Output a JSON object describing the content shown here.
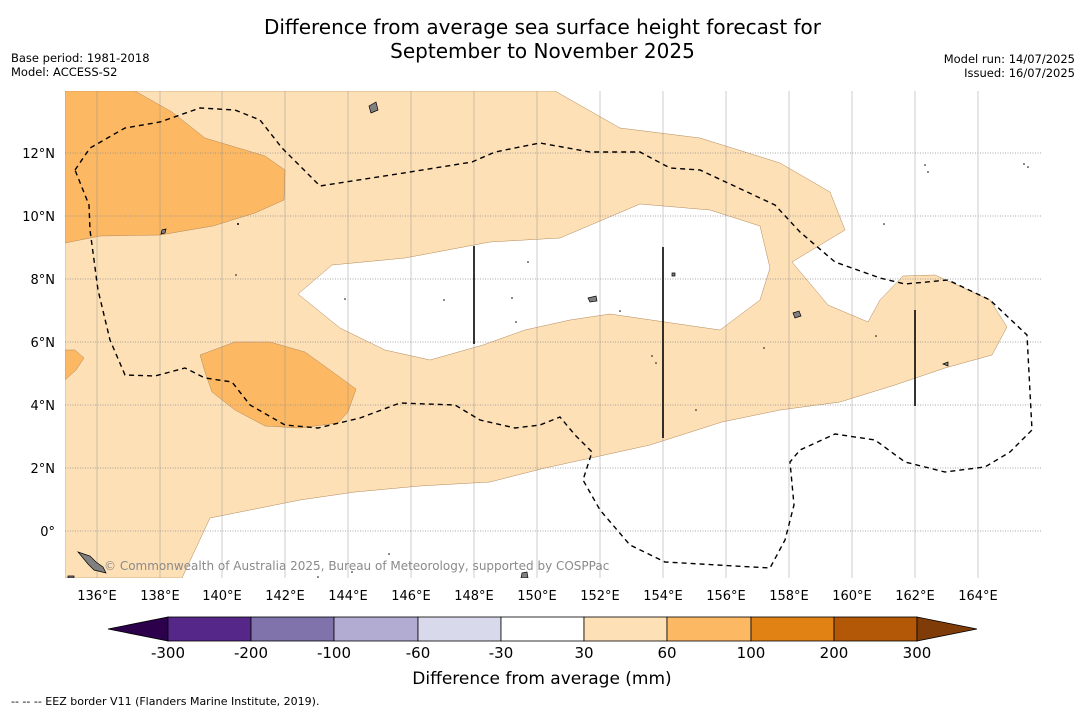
{
  "title": {
    "line1": "Difference from average sea surface height forecast for",
    "line2": "September to November 2025"
  },
  "meta_left": {
    "base_period": "Base period: 1981-2018",
    "model": "Model: ACCESS-S2"
  },
  "meta_right": {
    "model_run": "Model run: 14/07/2025",
    "issued": "Issued: 16/07/2025"
  },
  "map": {
    "lon_ticks": [
      "136°E",
      "138°E",
      "140°E",
      "142°E",
      "144°E",
      "146°E",
      "148°E",
      "150°E",
      "152°E",
      "154°E",
      "156°E",
      "158°E",
      "160°E",
      "162°E",
      "164°E"
    ],
    "lat_ticks": [
      "12°N",
      "10°N",
      "8°N",
      "6°N",
      "4°N",
      "2°N",
      "0°"
    ],
    "copyright": "© Commonwealth of Australia 2025, Bureau of Meteorology, supported by COSPPac"
  },
  "colorbar": {
    "title": "Difference from average (mm)",
    "tick_labels": [
      "-300",
      "-200",
      "-100",
      "-60",
      "-30",
      "30",
      "60",
      "100",
      "200",
      "300"
    ],
    "colors": {
      "under": "#2d004b",
      "bins": [
        "#542788",
        "#8073ac",
        "#b2abd2",
        "#d8daeb",
        "#ffffff",
        "#fee0b6",
        "#fdb863",
        "#e08214",
        "#b35806"
      ],
      "over": "#7f3b08"
    }
  },
  "footer": "--  --  -- EEZ border V11 (Flanders Marine Institute, 2019)."
}
